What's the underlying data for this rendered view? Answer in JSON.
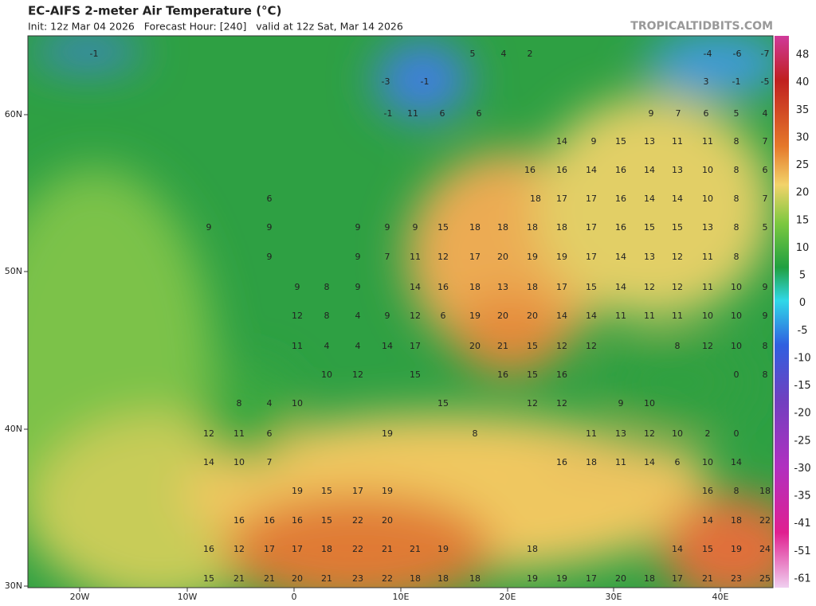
{
  "header": {
    "title": "EC-AIFS 2-meter Air Temperature (°C)",
    "subtitle": "Init: 12z Mar 04 2026   Forecast Hour: [240]   valid at 12z Sat, Mar 14 2026",
    "site": "TROPICALTIDBITS.COM"
  },
  "map": {
    "lon_labels": [
      "20W",
      "10W",
      "0",
      "10E",
      "20E",
      "30E",
      "40E"
    ],
    "lat_labels": [
      "60N",
      "50N",
      "40N",
      "30N"
    ],
    "colorbar_labels": [
      "48",
      "40",
      "35",
      "30",
      "25",
      "20",
      "15",
      "10",
      "5",
      "0",
      "-5",
      "-10",
      "-15",
      "-20",
      "-25",
      "-30",
      "-35",
      "-41",
      "-51",
      "-61"
    ],
    "station_values": [
      [
        "-1",
        "5",
        "4",
        "2",
        "-4",
        "-6",
        "-7"
      ],
      [
        "-3",
        "-1",
        "3",
        "-1",
        "-5"
      ],
      [
        "-1",
        "11",
        "6",
        "6",
        "9",
        "7",
        "6",
        "5",
        "4"
      ],
      [
        "14",
        "9",
        "15",
        "13",
        "11",
        "11",
        "8",
        "7"
      ],
      [
        "16",
        "16",
        "14",
        "16",
        "14",
        "13",
        "10",
        "8",
        "6"
      ],
      [
        "6",
        "18",
        "17",
        "17",
        "16",
        "14",
        "14",
        "10",
        "8",
        "7"
      ],
      [
        "9",
        "9",
        "9",
        "9",
        "9",
        "15",
        "18",
        "18",
        "18",
        "18",
        "17",
        "16",
        "15",
        "15",
        "13",
        "8",
        "5"
      ],
      [
        "9",
        "9",
        "7",
        "11",
        "12",
        "17",
        "20",
        "19",
        "19",
        "17",
        "14",
        "13",
        "12",
        "11",
        "8"
      ],
      [
        "9",
        "8",
        "9",
        "14",
        "16",
        "18",
        "13",
        "18",
        "17",
        "15",
        "14",
        "12",
        "12",
        "11",
        "10",
        "9"
      ],
      [
        "12",
        "8",
        "4",
        "9",
        "12",
        "6",
        "19",
        "20",
        "20",
        "14",
        "14",
        "11",
        "11",
        "11",
        "10",
        "10",
        "9"
      ],
      [
        "11",
        "4",
        "4",
        "14",
        "17",
        "20",
        "21",
        "15",
        "12",
        "12",
        "8",
        "12",
        "10",
        "8"
      ],
      [
        "10",
        "12",
        "15",
        "16",
        "15",
        "16",
        "0",
        "8"
      ],
      [
        "8",
        "4",
        "10",
        "15",
        "12",
        "12",
        "9",
        "10"
      ],
      [
        "12",
        "11",
        "6",
        "19",
        "8",
        "11",
        "13",
        "12",
        "10",
        "2",
        "0"
      ],
      [
        "14",
        "10",
        "7",
        "16",
        "18",
        "11",
        "14",
        "6",
        "10",
        "14"
      ],
      [
        "19",
        "15",
        "17",
        "19",
        "16",
        "8",
        "18"
      ],
      [
        "16",
        "16",
        "16",
        "15",
        "22",
        "20",
        "14",
        "18",
        "22"
      ],
      [
        "16",
        "12",
        "17",
        "17",
        "18",
        "22",
        "21",
        "21",
        "19",
        "18",
        "14",
        "15",
        "19",
        "24"
      ],
      [
        "15",
        "21",
        "21",
        "20",
        "21",
        "23",
        "22",
        "18",
        "18",
        "18",
        "19",
        "19",
        "17",
        "20",
        "18",
        "17",
        "21",
        "23",
        "25"
      ]
    ]
  }
}
